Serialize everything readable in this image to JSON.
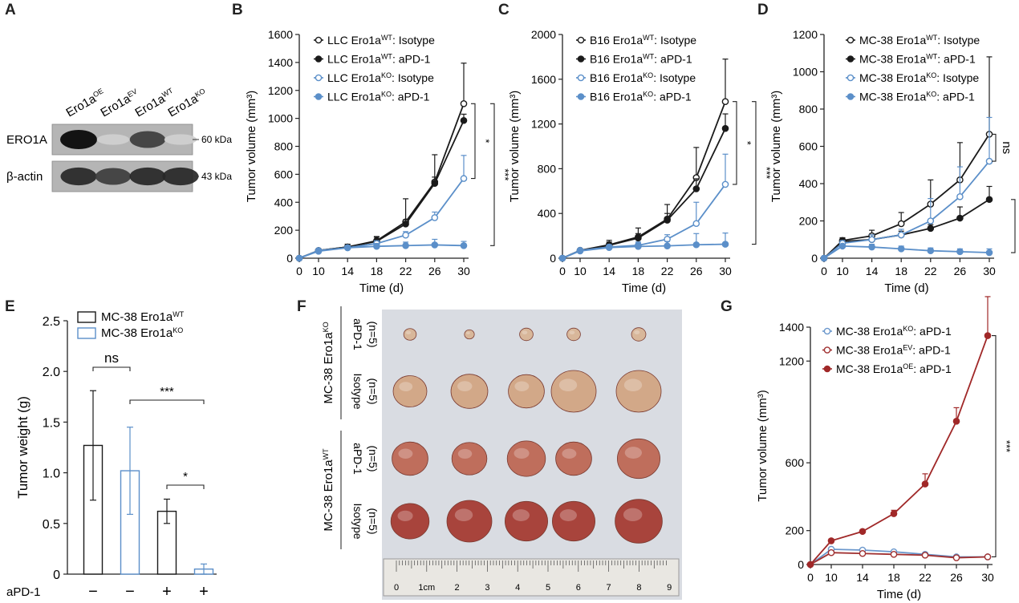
{
  "panels": {
    "A": {
      "letter": "A",
      "lanes": [
        {
          "base": "Ero1a",
          "sup": "OE"
        },
        {
          "base": "Ero1a",
          "sup": "EV"
        },
        {
          "base": "Ero1a",
          "sup": "WT"
        },
        {
          "base": "Ero1a",
          "sup": "KO"
        }
      ],
      "rows": [
        {
          "name": "ERO1A",
          "kda": "60 kDa",
          "intensity": [
            1.0,
            0.1,
            0.75,
            0.1
          ]
        },
        {
          "name": "β-actin",
          "kda": "43 kDa",
          "intensity": [
            0.85,
            0.75,
            0.85,
            0.85
          ]
        }
      ]
    },
    "F": {
      "letter": "F",
      "groups": [
        {
          "base": "MC-38 Ero1a",
          "sup": "KO",
          "rows": [
            {
              "treat": "aPD-1",
              "n": "(n=5)",
              "size": [
                0.28,
                0.22,
                0.3,
                0.3,
                0.32
              ],
              "col": "#d8b79a"
            },
            {
              "treat": "Isotype",
              "n": "(n=5)",
              "size": [
                0.75,
                0.82,
                0.8,
                1.0,
                1.0
              ],
              "col": "#d2a888"
            }
          ]
        },
        {
          "base": "MC-38 Ero1a",
          "sup": "WT",
          "rows": [
            {
              "treat": "aPD-1",
              "n": "(n=5)",
              "size": [
                0.8,
                0.78,
                0.85,
                0.8,
                0.95
              ],
              "col": "#bf6e5c"
            },
            {
              "treat": "Isotype",
              "n": "(n=5)",
              "size": [
                0.85,
                1.0,
                0.95,
                0.95,
                1.05
              ],
              "col": "#a8443c"
            }
          ]
        }
      ],
      "ruler": {
        "labels": [
          "0",
          "1cm",
          "2",
          "3",
          "4",
          "5",
          "6",
          "7",
          "8",
          "9"
        ]
      }
    }
  },
  "chart_data": [
    {
      "panel": "B",
      "type": "line",
      "x": [
        0,
        10,
        14,
        18,
        22,
        26,
        30
      ],
      "xlabel": "Time (d)",
      "ylabel": "Tumor volume (mm³)",
      "ylim": [
        0,
        1600
      ],
      "yticks": [
        0,
        200,
        400,
        600,
        800,
        1000,
        1200,
        1400,
        1600
      ],
      "series": [
        {
          "name": "LLC Ero1a",
          "sup": "WT",
          "suffix": ": Isotype",
          "color": "#1a1a1a",
          "filled": false,
          "values": [
            0,
            55,
            80,
            125,
            260,
            545,
            1105
          ],
          "err": [
            0,
            10,
            20,
            30,
            165,
            195,
            290
          ]
        },
        {
          "name": "LLC Ero1a",
          "sup": "WT",
          "suffix": ": aPD-1",
          "color": "#1a1a1a",
          "filled": true,
          "values": [
            0,
            55,
            80,
            120,
            245,
            535,
            985
          ],
          "err": [
            0,
            10,
            20,
            30,
            30,
            45,
            45
          ]
        },
        {
          "name": "LLC Ero1a",
          "sup": "KO",
          "suffix": ": Isotype",
          "color": "#5b8fc9",
          "filled": false,
          "values": [
            0,
            50,
            75,
            105,
            165,
            290,
            570
          ],
          "err": [
            0,
            8,
            15,
            20,
            25,
            40,
            165
          ]
        },
        {
          "name": "LLC Ero1a",
          "sup": "KO",
          "suffix": ": aPD-1",
          "color": "#5b8fc9",
          "filled": true,
          "values": [
            0,
            55,
            75,
            85,
            90,
            95,
            90
          ],
          "err": [
            0,
            8,
            15,
            20,
            25,
            40,
            30
          ]
        }
      ],
      "sig": [
        {
          "label": "*",
          "from": 0,
          "to": 2
        },
        {
          "label": "***",
          "from": 0,
          "to": 3
        }
      ]
    },
    {
      "panel": "C",
      "type": "line",
      "x": [
        0,
        10,
        14,
        18,
        22,
        26,
        30
      ],
      "xlabel": "Time (d)",
      "ylabel": "Tumor volume (mm³)",
      "ylim": [
        0,
        2000
      ],
      "yticks": [
        0,
        400,
        800,
        1200,
        1600,
        2000
      ],
      "series": [
        {
          "name": "B16 Ero1a",
          "sup": "WT",
          "suffix": ": Isotype",
          "color": "#1a1a1a",
          "filled": false,
          "values": [
            0,
            70,
            120,
            190,
            350,
            720,
            1400
          ],
          "err": [
            0,
            10,
            40,
            80,
            130,
            270,
            380
          ]
        },
        {
          "name": "B16 Ero1a",
          "sup": "WT",
          "suffix": ": aPD-1",
          "color": "#1a1a1a",
          "filled": true,
          "values": [
            0,
            70,
            115,
            180,
            340,
            620,
            1160
          ],
          "err": [
            0,
            10,
            30,
            40,
            60,
            90,
            130
          ]
        },
        {
          "name": "B16 Ero1a",
          "sup": "KO",
          "suffix": ": Isotype",
          "color": "#5b8fc9",
          "filled": false,
          "values": [
            0,
            70,
            100,
            115,
            170,
            310,
            660
          ],
          "err": [
            0,
            10,
            20,
            30,
            40,
            190,
            270
          ]
        },
        {
          "name": "B16 Ero1a",
          "sup": "KO",
          "suffix": ": aPD-1",
          "color": "#5b8fc9",
          "filled": true,
          "values": [
            0,
            65,
            95,
            105,
            110,
            120,
            125
          ],
          "err": [
            0,
            10,
            20,
            30,
            40,
            100,
            100
          ]
        }
      ],
      "sig": [
        {
          "label": "*",
          "from": 0,
          "to": 2
        },
        {
          "label": "***",
          "from": 0,
          "to": 3
        }
      ]
    },
    {
      "panel": "D",
      "type": "line",
      "x": [
        0,
        10,
        14,
        18,
        22,
        26,
        30
      ],
      "xlabel": "Time (d)",
      "ylabel": "Tumor volume (mm³)",
      "ylim": [
        0,
        1200
      ],
      "yticks": [
        0,
        200,
        400,
        600,
        800,
        1000,
        1200
      ],
      "series": [
        {
          "name": "MC-38 Ero1a",
          "sup": "WT",
          "suffix": ": Isotype",
          "color": "#1a1a1a",
          "filled": false,
          "values": [
            0,
            95,
            120,
            185,
            290,
            420,
            665
          ],
          "err": [
            0,
            15,
            30,
            60,
            130,
            200,
            415
          ]
        },
        {
          "name": "MC-38 Ero1a",
          "sup": "WT",
          "suffix": ": aPD-1",
          "color": "#1a1a1a",
          "filled": true,
          "values": [
            0,
            90,
            100,
            125,
            160,
            215,
            315
          ],
          "err": [
            0,
            15,
            25,
            20,
            20,
            60,
            70
          ]
        },
        {
          "name": "MC-38 Ero1a",
          "sup": "KO",
          "suffix": ": Isotype",
          "color": "#5b8fc9",
          "filled": false,
          "values": [
            0,
            80,
            100,
            125,
            200,
            330,
            520
          ],
          "err": [
            0,
            15,
            25,
            30,
            120,
            160,
            235
          ]
        },
        {
          "name": "MC-38 Ero1a",
          "sup": "KO",
          "suffix": ": aPD-1",
          "color": "#5b8fc9",
          "filled": true,
          "values": [
            0,
            65,
            60,
            50,
            40,
            35,
            30
          ],
          "err": [
            0,
            10,
            15,
            15,
            15,
            15,
            20
          ]
        }
      ],
      "sig": [
        {
          "label": "ns",
          "from": 0,
          "to": 2
        },
        {
          "label": "***",
          "from": 1,
          "to": 3
        }
      ]
    },
    {
      "panel": "E",
      "type": "bar",
      "categories": [
        "−",
        "−",
        "+",
        "+"
      ],
      "xlabel": "aPD-1",
      "ylabel": "Tumor weight (g)",
      "ylim": [
        0,
        2.5
      ],
      "yticks": [
        0,
        0.5,
        1.0,
        1.5,
        2.0,
        2.5
      ],
      "ytick_labels": [
        "0",
        "0.5",
        "1.0",
        "1.5",
        "2.0",
        "2.5"
      ],
      "values": [
        1.27,
        1.02,
        0.62,
        0.05
      ],
      "err": [
        0.54,
        0.43,
        0.12,
        0.05
      ],
      "colors": [
        "#1a1a1a",
        "#5b8fc9",
        "#1a1a1a",
        "#5b8fc9"
      ],
      "series": [
        {
          "name": "MC-38 Ero1a",
          "sup": "WT",
          "color": "#1a1a1a"
        },
        {
          "name": "MC-38 Ero1a",
          "sup": "KO",
          "color": "#5b8fc9"
        }
      ],
      "sig": [
        {
          "label": "ns",
          "from": 0,
          "to": 1
        },
        {
          "label": "***",
          "from": 1,
          "to": 3
        },
        {
          "label": "*",
          "from": 2,
          "to": 3
        }
      ]
    },
    {
      "panel": "G",
      "type": "line",
      "x": [
        0,
        10,
        14,
        18,
        22,
        26,
        30
      ],
      "xlabel": "Time (d)",
      "ylabel": "Tumor volume (mm³)",
      "ylim": [
        0,
        1400
      ],
      "yticks": [
        0,
        200,
        600,
        1200,
        1400
      ],
      "series": [
        {
          "name": "MC-38 Ero1a",
          "sup": "KO",
          "suffix": ": aPD-1",
          "color": "#6a97cc",
          "filled": false,
          "values": [
            0,
            90,
            85,
            75,
            60,
            45,
            45
          ],
          "err": [
            0,
            5,
            5,
            5,
            5,
            5,
            5
          ]
        },
        {
          "name": "MC-38 Ero1a",
          "sup": "EV",
          "suffix": ": aPD-1",
          "color": "#a03030",
          "filled": false,
          "values": [
            0,
            70,
            65,
            60,
            55,
            40,
            45
          ],
          "err": [
            0,
            5,
            5,
            5,
            5,
            5,
            5
          ]
        },
        {
          "name": "MC-38 Ero1a",
          "sup": "OE",
          "suffix": ": aPD-1",
          "color": "#a02828",
          "filled": true,
          "values": [
            0,
            140,
            195,
            300,
            475,
            845,
            1350
          ],
          "err": [
            0,
            10,
            10,
            20,
            60,
            80,
            230
          ]
        }
      ],
      "sig": [
        {
          "label": "***",
          "from": 2,
          "to": 0
        }
      ]
    }
  ]
}
